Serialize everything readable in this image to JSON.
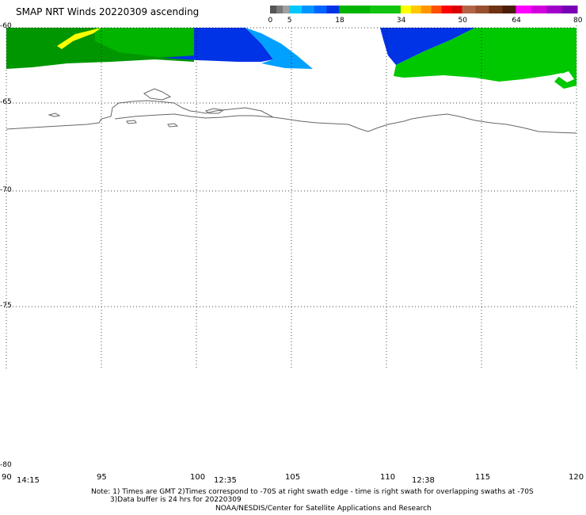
{
  "title": "SMAP NRT Winds 20220309 ascending",
  "colorbar": {
    "ticks": [
      "0",
      "5",
      "18",
      "34",
      "50",
      "64",
      "80"
    ],
    "segments": [
      {
        "from": 0,
        "to": 5,
        "colors": [
          "#555555",
          "#7a7a7a",
          "#a0a0a0"
        ]
      },
      {
        "from": 5,
        "to": 18,
        "colors": [
          "#00c8ff",
          "#0096ff",
          "#0064ff",
          "#0032e6"
        ]
      },
      {
        "from": 18,
        "to": 34,
        "colors": [
          "#00b400",
          "#10c410"
        ]
      },
      {
        "from": 34,
        "to": 50,
        "colors": [
          "#ffff00",
          "#ffc800",
          "#ff9600",
          "#ff5000",
          "#ff0000",
          "#dc0000"
        ]
      },
      {
        "from": 50,
        "to": 64,
        "colors": [
          "#b46446",
          "#96502d",
          "#6e3214",
          "#4b1e0a"
        ]
      },
      {
        "from": 64,
        "to": 80,
        "colors": [
          "#ff00ff",
          "#d200dc",
          "#a000c8",
          "#7800b4"
        ]
      }
    ]
  },
  "lat_labels": [
    "-60",
    "-65",
    "-70",
    "-75",
    "-80"
  ],
  "lon_labels": [
    "90",
    "95",
    "100",
    "105",
    "110",
    "115",
    "120"
  ],
  "time_labels": [
    "14:15",
    "12:35",
    "12:38"
  ],
  "notes": [
    "Note: 1) Times are GMT 2)Times correspond to -70S at right swath edge - time is right swath for overlapping swaths at -70S",
    "3)Data buffer is 24 hrs for 20220309",
    "NOAA/NESDIS/Center for Satellite Applications and Research"
  ],
  "colors": {
    "wind_dark_green": "#009600",
    "wind_green": "#00c800",
    "wind_blue": "#0032e6",
    "wind_light_blue": "#00a0ff",
    "wind_yellow": "#ffff00",
    "coastline": "#666666"
  }
}
